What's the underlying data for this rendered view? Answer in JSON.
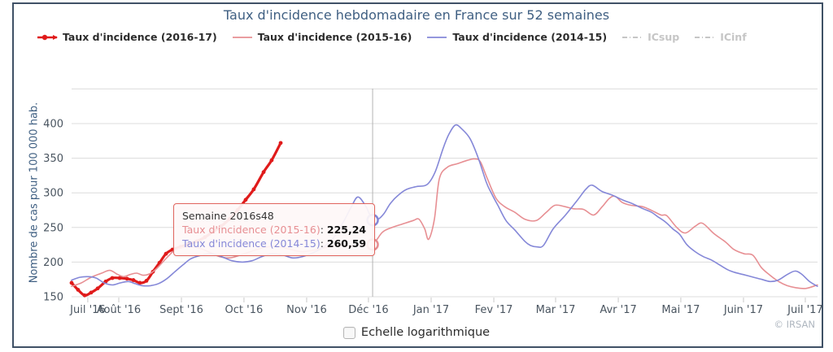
{
  "footer": {
    "copyright": "© IRSAN"
  },
  "controls": {
    "log_label": "Echelle logarithmique"
  },
  "tooltip": {
    "title": "Semaine 2016s48",
    "rows": [
      {
        "label": "Taux d'incidence (2015-16)",
        "value": "225,24",
        "color": "#e78f93"
      },
      {
        "label": "Taux d'incidence (2014-15)",
        "value": "260,59",
        "color": "#8588d8"
      }
    ]
  },
  "legend": {
    "items": [
      {
        "slug": "2016-17",
        "label": "Taux d'incidence (2016-17)",
        "color": "#e01b1b",
        "style": "bold-marker",
        "active": true
      },
      {
        "slug": "2015-16",
        "label": "Taux d'incidence (2015-16)",
        "color": "#e78f93",
        "style": "thin",
        "active": true
      },
      {
        "slug": "2014-15",
        "label": "Taux d'incidence (2014-15)",
        "color": "#8588d8",
        "style": "thin",
        "active": true
      },
      {
        "slug": "icsup",
        "label": "ICsup",
        "color": "#c6c6c6",
        "style": "dashed",
        "active": false
      },
      {
        "slug": "icinf",
        "label": "ICinf",
        "color": "#c6c6c6",
        "style": "dashed",
        "active": false
      }
    ]
  },
  "chart_data": {
    "type": "line",
    "title": "Taux d'incidence hebdomadaire en France sur 52 semaines",
    "xlabel": "",
    "ylabel": "Nombre de cas pour 100 000 hab.",
    "y_axis": {
      "ticks": [
        150,
        200,
        250,
        300,
        350,
        400
      ],
      "range": [
        150,
        450
      ],
      "grid": true
    },
    "x_axis": {
      "unit": "weeks from 2016s27 to 2017s26",
      "labels": [
        "Juil '16",
        "Août '16",
        "Sept '16",
        "Oct '16",
        "Nov '16",
        "Déc '16",
        "Jan '17",
        "Fev '17",
        "Mar '17",
        "Avr '17",
        "Mai '17",
        "Juin '17",
        "Juil '17"
      ],
      "label_week_offsets": [
        1.13,
        3.29,
        7.66,
        12.02,
        16.39,
        20.7,
        25.07,
        29.44,
        33.75,
        38.12,
        42.48,
        46.85,
        51.16
      ]
    },
    "legend_position": "top",
    "crosshair_week": 20.99,
    "highlights": [
      {
        "series": "Taux d'incidence (2015-16)",
        "week": 20.99,
        "value": 225.24,
        "color": "#e78f93"
      },
      {
        "series": "Taux d'incidence (2014-15)",
        "week": 20.99,
        "value": 260.59,
        "color": "#8588d8"
      }
    ],
    "series": [
      {
        "name": "Taux d'incidence (2016-17)",
        "color": "#e01b1b",
        "width": 3.2,
        "markers": true,
        "points": [
          [
            0,
            170
          ],
          [
            0.45,
            160
          ],
          [
            0.91,
            152
          ],
          [
            1.36,
            156
          ],
          [
            1.82,
            162
          ],
          [
            2.38,
            172
          ],
          [
            2.84,
            177
          ],
          [
            3.35,
            177
          ],
          [
            3.86,
            176
          ],
          [
            4.31,
            174
          ],
          [
            4.76,
            170
          ],
          [
            5.22,
            173
          ],
          [
            5.67,
            186
          ],
          [
            6.13,
            199
          ],
          [
            6.58,
            212
          ],
          [
            7.03,
            218
          ],
          [
            7.6,
            222
          ],
          [
            8.17,
            226
          ],
          [
            8.73,
            230
          ],
          [
            9.3,
            236
          ],
          [
            9.87,
            244
          ],
          [
            10.44,
            252
          ],
          [
            11.0,
            262
          ],
          [
            11.57,
            275
          ],
          [
            12.14,
            290
          ],
          [
            12.7,
            305
          ],
          [
            13.39,
            330
          ],
          [
            13.95,
            347
          ],
          [
            14.58,
            372
          ]
        ]
      },
      {
        "name": "Taux d'incidence (2015-16)",
        "color": "#e78f93",
        "width": 1.6,
        "markers": false,
        "points": [
          [
            0,
            165
          ],
          [
            0.68,
            170
          ],
          [
            1.36,
            178
          ],
          [
            2.1,
            184
          ],
          [
            2.67,
            188
          ],
          [
            3.23,
            182
          ],
          [
            3.63,
            179
          ],
          [
            4.08,
            182
          ],
          [
            4.54,
            184
          ],
          [
            4.99,
            181
          ],
          [
            5.44,
            183
          ],
          [
            5.9,
            190
          ],
          [
            6.35,
            200
          ],
          [
            6.81,
            210
          ],
          [
            7.26,
            218
          ],
          [
            8.06,
            222
          ],
          [
            8.91,
            220
          ],
          [
            9.64,
            214
          ],
          [
            10.32,
            208
          ],
          [
            11.0,
            206
          ],
          [
            11.74,
            210
          ],
          [
            12.59,
            216
          ],
          [
            13.44,
            221
          ],
          [
            14.29,
            223
          ],
          [
            15.14,
            219
          ],
          [
            16.0,
            215
          ],
          [
            16.85,
            217
          ],
          [
            17.7,
            221
          ],
          [
            18.55,
            224
          ],
          [
            19.4,
            224
          ],
          [
            20.25,
            225
          ],
          [
            20.99,
            225.24
          ],
          [
            21.67,
            243
          ],
          [
            22.35,
            250
          ],
          [
            23.08,
            255
          ],
          [
            23.82,
            260
          ],
          [
            24.22,
            262
          ],
          [
            24.62,
            248
          ],
          [
            24.9,
            233
          ],
          [
            25.3,
            262
          ],
          [
            25.64,
            320
          ],
          [
            26.2,
            337
          ],
          [
            26.9,
            342
          ],
          [
            27.6,
            347
          ],
          [
            28.1,
            349
          ],
          [
            28.5,
            345
          ],
          [
            29.0,
            320
          ],
          [
            29.6,
            292
          ],
          [
            30.2,
            280
          ],
          [
            30.9,
            272
          ],
          [
            31.6,
            262
          ],
          [
            32.4,
            260
          ],
          [
            33.1,
            272
          ],
          [
            33.7,
            282
          ],
          [
            34.4,
            280
          ],
          [
            35.0,
            277
          ],
          [
            35.7,
            276
          ],
          [
            36.4,
            268
          ],
          [
            37.0,
            280
          ],
          [
            37.5,
            292
          ],
          [
            37.9,
            295
          ],
          [
            38.4,
            286
          ],
          [
            39.0,
            282
          ],
          [
            39.8,
            280
          ],
          [
            40.4,
            275
          ],
          [
            41.1,
            268
          ],
          [
            41.5,
            267
          ],
          [
            42.2,
            250
          ],
          [
            42.8,
            242
          ],
          [
            43.5,
            252
          ],
          [
            44.0,
            256
          ],
          [
            44.8,
            241
          ],
          [
            45.6,
            229
          ],
          [
            46.2,
            218
          ],
          [
            46.9,
            212
          ],
          [
            47.5,
            210
          ],
          [
            48.1,
            192
          ],
          [
            48.7,
            181
          ],
          [
            49.3,
            172
          ],
          [
            49.9,
            166
          ],
          [
            50.5,
            163
          ],
          [
            51.2,
            162
          ],
          [
            52.0,
            167
          ]
        ]
      },
      {
        "name": "Taux d'incidence (2014-15)",
        "color": "#8588d8",
        "width": 1.6,
        "markers": false,
        "points": [
          [
            0,
            174
          ],
          [
            0.57,
            178
          ],
          [
            1.13,
            179
          ],
          [
            1.7,
            177
          ],
          [
            2.27,
            170
          ],
          [
            2.84,
            167
          ],
          [
            3.4,
            170
          ],
          [
            3.97,
            172
          ],
          [
            4.42,
            169
          ],
          [
            4.93,
            166
          ],
          [
            5.5,
            166
          ],
          [
            6.07,
            169
          ],
          [
            6.64,
            176
          ],
          [
            7.2,
            186
          ],
          [
            7.77,
            196
          ],
          [
            8.34,
            205
          ],
          [
            9.07,
            210
          ],
          [
            9.76,
            212
          ],
          [
            10.44,
            208
          ],
          [
            11.17,
            202
          ],
          [
            11.91,
            200
          ],
          [
            12.59,
            202
          ],
          [
            13.27,
            208
          ],
          [
            13.95,
            212
          ],
          [
            14.75,
            210
          ],
          [
            15.43,
            206
          ],
          [
            16.11,
            208
          ],
          [
            16.9,
            214
          ],
          [
            17.58,
            222
          ],
          [
            18.26,
            235
          ],
          [
            18.95,
            258
          ],
          [
            19.51,
            280
          ],
          [
            19.97,
            294
          ],
          [
            20.53,
            280
          ],
          [
            20.99,
            260.59
          ],
          [
            21.39,
            262
          ],
          [
            21.78,
            270
          ],
          [
            22.24,
            285
          ],
          [
            22.8,
            297
          ],
          [
            23.37,
            305
          ],
          [
            24.05,
            309
          ],
          [
            24.79,
            312
          ],
          [
            25.35,
            330
          ],
          [
            25.92,
            365
          ],
          [
            26.32,
            385
          ],
          [
            26.77,
            398
          ],
          [
            27.22,
            392
          ],
          [
            27.79,
            378
          ],
          [
            28.36,
            350
          ],
          [
            28.92,
            315
          ],
          [
            29.26,
            300
          ],
          [
            29.72,
            282
          ],
          [
            30.29,
            260
          ],
          [
            30.92,
            246
          ],
          [
            31.6,
            230
          ],
          [
            32.0,
            224
          ],
          [
            32.45,
            222
          ],
          [
            32.9,
            224
          ],
          [
            33.58,
            248
          ],
          [
            34.44,
            268
          ],
          [
            35.29,
            290
          ],
          [
            35.85,
            305
          ],
          [
            36.3,
            311
          ],
          [
            36.98,
            302
          ],
          [
            37.66,
            297
          ],
          [
            38.4,
            290
          ],
          [
            39.13,
            284
          ],
          [
            39.86,
            277
          ],
          [
            40.43,
            272
          ],
          [
            40.84,
            266
          ],
          [
            41.4,
            258
          ],
          [
            41.92,
            248
          ],
          [
            42.4,
            240
          ],
          [
            42.91,
            225
          ],
          [
            43.48,
            215
          ],
          [
            44.04,
            208
          ],
          [
            44.61,
            203
          ],
          [
            45.18,
            196
          ],
          [
            45.75,
            189
          ],
          [
            46.26,
            185
          ],
          [
            46.83,
            182
          ],
          [
            47.56,
            178
          ],
          [
            48.13,
            175
          ],
          [
            48.7,
            172
          ],
          [
            49.26,
            174
          ],
          [
            49.9,
            182
          ],
          [
            50.43,
            187
          ],
          [
            50.88,
            183
          ],
          [
            51.45,
            172
          ],
          [
            52.0,
            165
          ]
        ]
      },
      {
        "name": "ICsup",
        "color": "#c6c6c6",
        "disabled": true
      },
      {
        "name": "ICinf",
        "color": "#c6c6c6",
        "disabled": true
      }
    ]
  }
}
